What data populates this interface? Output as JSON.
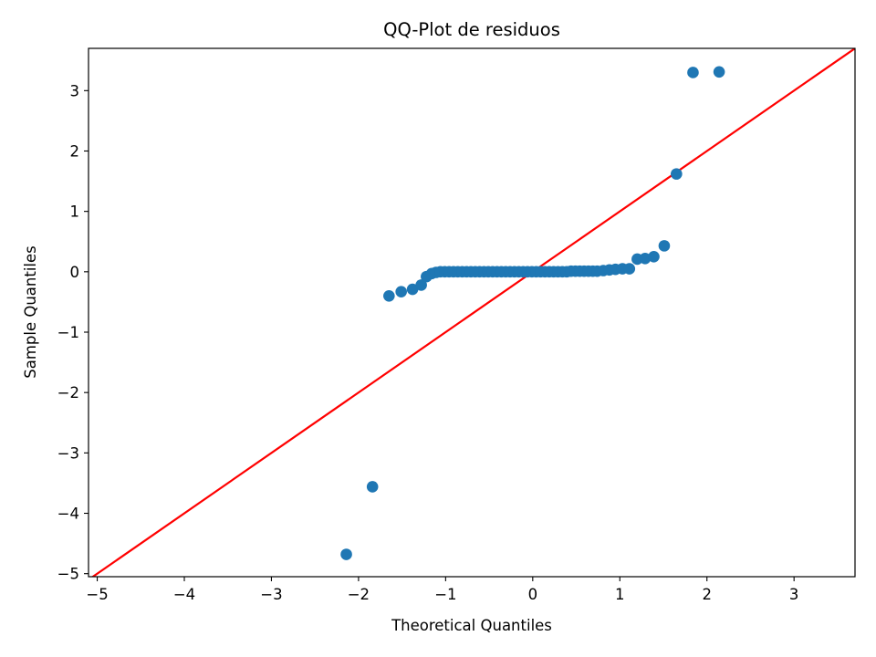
{
  "chart_data": {
    "type": "scatter",
    "title": "QQ-Plot de residuos",
    "xlabel": "Theoretical Quantiles",
    "ylabel": "Sample Quantiles",
    "xlim": [
      -5.1,
      3.7
    ],
    "ylim": [
      -5.05,
      3.7
    ],
    "xticks": [
      -5,
      -4,
      -3,
      -2,
      -1,
      0,
      1,
      2,
      3
    ],
    "yticks": [
      -5,
      -4,
      -3,
      -2,
      -1,
      0,
      1,
      2,
      3
    ],
    "xtick_labels": [
      "−5",
      "−4",
      "−3",
      "−2",
      "−1",
      "0",
      "1",
      "2",
      "3"
    ],
    "ytick_labels": [
      "−5",
      "−4",
      "−3",
      "−2",
      "−1",
      "0",
      "1",
      "2",
      "3"
    ],
    "grid": false,
    "colors": {
      "points": "#1f77b4",
      "reference_line": "#ff0000",
      "axes": "#000000"
    },
    "reference_line": {
      "slope": 1,
      "intercept": 0
    },
    "points": [
      {
        "x": -2.14,
        "y": -4.68
      },
      {
        "x": -1.84,
        "y": -3.56
      },
      {
        "x": -1.65,
        "y": -0.4
      },
      {
        "x": -1.51,
        "y": -0.33
      },
      {
        "x": -1.38,
        "y": -0.29
      },
      {
        "x": -1.28,
        "y": -0.22
      },
      {
        "x": -1.22,
        "y": -0.08
      },
      {
        "x": -1.16,
        "y": -0.03
      },
      {
        "x": -1.11,
        "y": -0.01
      },
      {
        "x": -1.06,
        "y": 0.0
      },
      {
        "x": -1.01,
        "y": 0.0
      },
      {
        "x": -0.96,
        "y": 0.0
      },
      {
        "x": -0.91,
        "y": 0.0
      },
      {
        "x": -0.86,
        "y": 0.0
      },
      {
        "x": -0.81,
        "y": 0.0
      },
      {
        "x": -0.76,
        "y": 0.0
      },
      {
        "x": -0.71,
        "y": 0.0
      },
      {
        "x": -0.66,
        "y": 0.0
      },
      {
        "x": -0.61,
        "y": 0.0
      },
      {
        "x": -0.56,
        "y": 0.0
      },
      {
        "x": -0.51,
        "y": 0.0
      },
      {
        "x": -0.46,
        "y": 0.0
      },
      {
        "x": -0.41,
        "y": 0.0
      },
      {
        "x": -0.36,
        "y": 0.0
      },
      {
        "x": -0.31,
        "y": 0.0
      },
      {
        "x": -0.26,
        "y": 0.0
      },
      {
        "x": -0.21,
        "y": 0.0
      },
      {
        "x": -0.16,
        "y": 0.0
      },
      {
        "x": -0.11,
        "y": 0.0
      },
      {
        "x": -0.06,
        "y": 0.0
      },
      {
        "x": -0.01,
        "y": 0.0
      },
      {
        "x": 0.04,
        "y": 0.0
      },
      {
        "x": 0.09,
        "y": 0.0
      },
      {
        "x": 0.14,
        "y": 0.0
      },
      {
        "x": 0.19,
        "y": 0.0
      },
      {
        "x": 0.24,
        "y": 0.0
      },
      {
        "x": 0.29,
        "y": 0.0
      },
      {
        "x": 0.34,
        "y": 0.0
      },
      {
        "x": 0.39,
        "y": 0.0
      },
      {
        "x": 0.44,
        "y": 0.01
      },
      {
        "x": 0.49,
        "y": 0.01
      },
      {
        "x": 0.54,
        "y": 0.01
      },
      {
        "x": 0.59,
        "y": 0.01
      },
      {
        "x": 0.64,
        "y": 0.01
      },
      {
        "x": 0.69,
        "y": 0.01
      },
      {
        "x": 0.74,
        "y": 0.01
      },
      {
        "x": 0.81,
        "y": 0.02
      },
      {
        "x": 0.88,
        "y": 0.03
      },
      {
        "x": 0.95,
        "y": 0.04
      },
      {
        "x": 1.03,
        "y": 0.05
      },
      {
        "x": 1.11,
        "y": 0.05
      },
      {
        "x": 1.2,
        "y": 0.21
      },
      {
        "x": 1.29,
        "y": 0.22
      },
      {
        "x": 1.39,
        "y": 0.25
      },
      {
        "x": 1.51,
        "y": 0.43
      },
      {
        "x": 1.65,
        "y": 1.62
      },
      {
        "x": 1.84,
        "y": 3.3
      },
      {
        "x": 2.14,
        "y": 3.31
      }
    ]
  }
}
